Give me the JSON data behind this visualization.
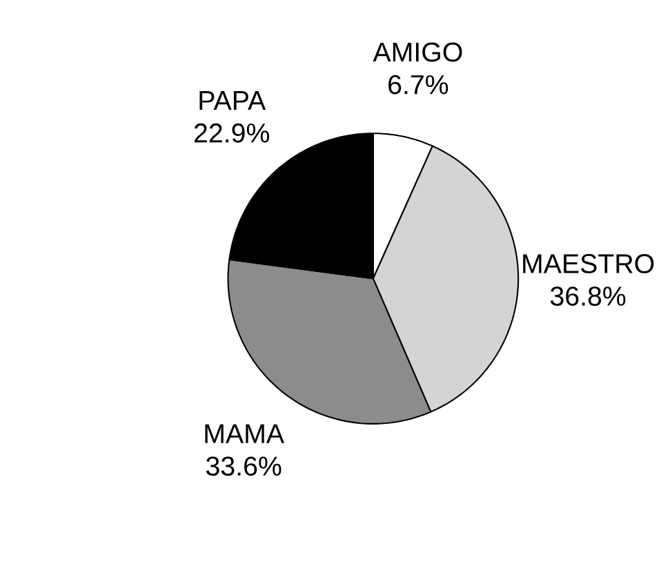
{
  "chart_data": {
    "type": "pie",
    "categories": [
      "AMIGO",
      "MAESTRO",
      "MAMA",
      "PAPA"
    ],
    "values": [
      6.7,
      36.8,
      33.6,
      22.9
    ],
    "value_labels": [
      "6.7%",
      "36.8%",
      "33.6%",
      "22.9%"
    ],
    "colors": [
      "#ffffff",
      "#d4d4d4",
      "#8c8c8c",
      "#000000"
    ]
  }
}
